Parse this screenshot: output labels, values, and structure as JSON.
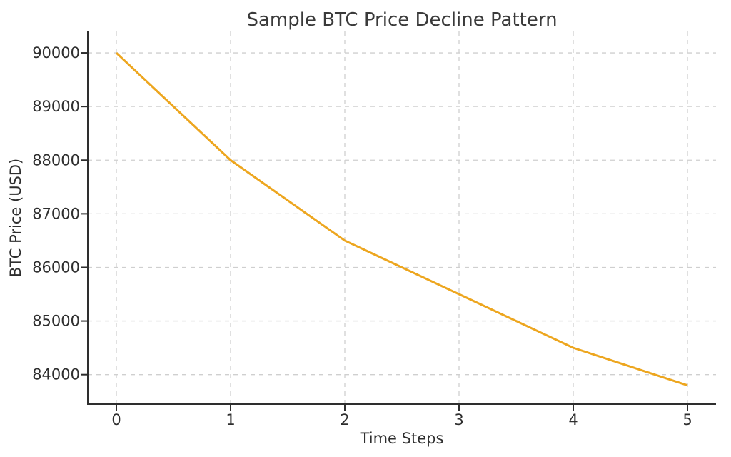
{
  "figure": {
    "background": "#ffffff"
  },
  "chart_data": {
    "type": "line",
    "title": "Sample BTC Price Decline Pattern",
    "xlabel": "Time Steps",
    "ylabel": "BTC Price (USD)",
    "x": [
      0,
      1,
      2,
      3,
      4,
      5
    ],
    "series": [
      {
        "name": "BTC Price",
        "values": [
          90000,
          88000,
          86500,
          85500,
          84500,
          83800
        ],
        "color": "#EDA61F",
        "linewidth": 3
      }
    ],
    "xticks": [
      0,
      1,
      2,
      3,
      4,
      5
    ],
    "yticks": [
      84000,
      85000,
      86000,
      87000,
      88000,
      89000,
      90000
    ],
    "xlim": [
      -0.25,
      5.25
    ],
    "ylim": [
      83450,
      90400
    ],
    "grid": true,
    "grid_style": "dashed",
    "legend": "none",
    "colors": {
      "text": "#2e2e2e",
      "spine": "#2e2e2e",
      "grid": "#cfcfcf",
      "background": "#ffffff"
    }
  }
}
